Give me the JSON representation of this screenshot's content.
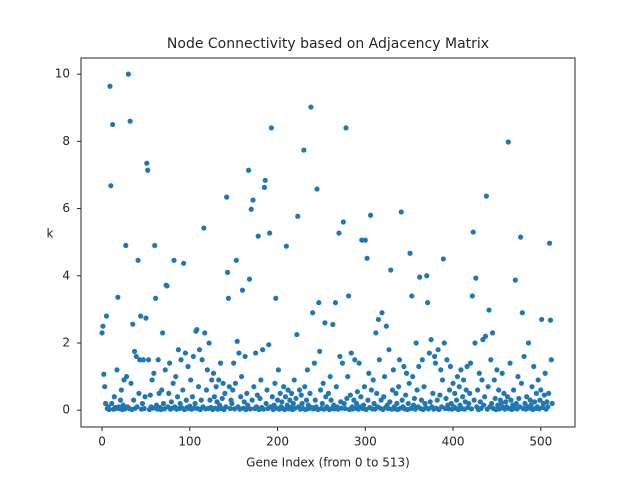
{
  "chart_data": {
    "type": "scatter",
    "title": "Node Connectivity based on Adjacency Matrix",
    "x_label": "Gene Index (from 0 to 513)",
    "y_label": "k",
    "color": "#1f77b4",
    "x": [
      0,
      1,
      2,
      3,
      4,
      5,
      6,
      7,
      8,
      9,
      10,
      11,
      12,
      13,
      14,
      15,
      16,
      17,
      18,
      19,
      20,
      21,
      22,
      23,
      24,
      25,
      26,
      27,
      28,
      29,
      30,
      31,
      32,
      33,
      34,
      35,
      36,
      37,
      38,
      39,
      40,
      41,
      42,
      43,
      44,
      45,
      46,
      47,
      48,
      49,
      50,
      51,
      52,
      53,
      54,
      55,
      56,
      57,
      58,
      59,
      60,
      61,
      62,
      63,
      64,
      65,
      66,
      67,
      68,
      69,
      70,
      71,
      72,
      73,
      74,
      75,
      76,
      77,
      78,
      79,
      80,
      81,
      82,
      83,
      84,
      85,
      86,
      87,
      88,
      89,
      90,
      91,
      92,
      93,
      94,
      95,
      96,
      97,
      98,
      99,
      100,
      101,
      102,
      103,
      104,
      105,
      106,
      107,
      108,
      109,
      110,
      111,
      112,
      113,
      114,
      115,
      116,
      117,
      118,
      119,
      120,
      121,
      122,
      123,
      124,
      125,
      126,
      127,
      128,
      129,
      130,
      131,
      132,
      133,
      134,
      135,
      136,
      137,
      138,
      139,
      140,
      141,
      142,
      143,
      144,
      145,
      146,
      147,
      148,
      149,
      150,
      151,
      152,
      153,
      154,
      155,
      156,
      157,
      158,
      159,
      160,
      161,
      162,
      163,
      164,
      165,
      166,
      167,
      168,
      169,
      170,
      171,
      172,
      173,
      174,
      175,
      176,
      177,
      178,
      179,
      180,
      181,
      182,
      183,
      184,
      185,
      186,
      187,
      188,
      189,
      190,
      191,
      192,
      193,
      194,
      195,
      196,
      197,
      198,
      199,
      200,
      201,
      202,
      203,
      204,
      205,
      206,
      207,
      208,
      209,
      210,
      211,
      212,
      213,
      214,
      215,
      216,
      217,
      218,
      219,
      220,
      221,
      222,
      223,
      224,
      225,
      226,
      227,
      228,
      229,
      230,
      231,
      232,
      233,
      234,
      235,
      236,
      237,
      238,
      239,
      240,
      241,
      242,
      243,
      244,
      245,
      246,
      247,
      248,
      249,
      250,
      251,
      252,
      253,
      254,
      255,
      256,
      257,
      258,
      259,
      260,
      261,
      262,
      263,
      264,
      265,
      266,
      267,
      268,
      269,
      270,
      271,
      272,
      273,
      274,
      275,
      276,
      277,
      278,
      279,
      280,
      281,
      282,
      283,
      284,
      285,
      286,
      287,
      288,
      289,
      290,
      291,
      292,
      293,
      294,
      295,
      296,
      297,
      298,
      299,
      300,
      301,
      302,
      303,
      304,
      305,
      306,
      307,
      308,
      309,
      310,
      311,
      312,
      313,
      314,
      315,
      316,
      317,
      318,
      319,
      320,
      321,
      322,
      323,
      324,
      325,
      326,
      327,
      328,
      329,
      330,
      331,
      332,
      333,
      334,
      335,
      336,
      337,
      338,
      339,
      340,
      341,
      342,
      343,
      344,
      345,
      346,
      347,
      348,
      349,
      350,
      351,
      352,
      353,
      354,
      355,
      356,
      357,
      358,
      359,
      360,
      361,
      362,
      363,
      364,
      365,
      366,
      367,
      368,
      369,
      370,
      371,
      372,
      373,
      374,
      375,
      376,
      377,
      378,
      379,
      380,
      381,
      382,
      383,
      384,
      385,
      386,
      387,
      388,
      389,
      390,
      391,
      392,
      393,
      394,
      395,
      396,
      397,
      398,
      399,
      400,
      401,
      402,
      403,
      404,
      405,
      406,
      407,
      408,
      409,
      410,
      411,
      412,
      413,
      414,
      415,
      416,
      417,
      418,
      419,
      420,
      421,
      422,
      423,
      424,
      425,
      426,
      427,
      428,
      429,
      430,
      431,
      432,
      433,
      434,
      435,
      436,
      437,
      438,
      439,
      440,
      441,
      442,
      443,
      444,
      445,
      446,
      447,
      448,
      449,
      450,
      451,
      452,
      453,
      454,
      455,
      456,
      457,
      458,
      459,
      460,
      461,
      462,
      463,
      464,
      465,
      466,
      467,
      468,
      469,
      470,
      471,
      472,
      473,
      474,
      475,
      476,
      477,
      478,
      479,
      480,
      481,
      482,
      483,
      484,
      485,
      486,
      487,
      488,
      489,
      490,
      491,
      492,
      493,
      494,
      495,
      496,
      497,
      498,
      499,
      500,
      501,
      502,
      503,
      504,
      505,
      506,
      507,
      508,
      509,
      510,
      511,
      512,
      513
    ],
    "values": [
      2.3,
      2.5,
      1.07,
      0.7,
      0.2,
      2.8,
      0.05,
      0.1,
      0.02,
      9.64,
      6.68,
      0.2,
      8.5,
      0.03,
      0.4,
      0.08,
      0.05,
      1.2,
      3.36,
      0.1,
      0.05,
      0.3,
      0.6,
      0.02,
      0.15,
      0.9,
      0.04,
      4.9,
      1.0,
      0.1,
      10.0,
      0.05,
      8.6,
      0.8,
      0.02,
      2.56,
      0.3,
      1.75,
      0.06,
      1.6,
      0.1,
      4.46,
      0.5,
      1.5,
      2.8,
      0.03,
      0.2,
      1.5,
      0.05,
      0.4,
      2.74,
      7.35,
      7.14,
      1.5,
      0.02,
      0.45,
      0.1,
      0.9,
      0.06,
      1.1,
      4.9,
      3.33,
      0.15,
      0.03,
      1.5,
      0.5,
      0.08,
      0.02,
      0.6,
      2.3,
      0.2,
      0.04,
      1.2,
      3.72,
      3.7,
      0.1,
      0.5,
      1.4,
      0.03,
      0.25,
      0.06,
      0.8,
      4.46,
      0.1,
      1.0,
      0.03,
      0.4,
      1.8,
      0.05,
      0.2,
      1.5,
      0.07,
      0.6,
      4.37,
      0.02,
      1.7,
      0.3,
      0.08,
      1.3,
      0.05,
      0.12,
      0.9,
      0.03,
      0.4,
      1.6,
      0.06,
      0.2,
      2.35,
      2.4,
      0.05,
      0.7,
      1.8,
      0.02,
      0.3,
      1.5,
      0.1,
      5.42,
      2.3,
      0.04,
      0.6,
      1.2,
      0.05,
      2.0,
      0.3,
      0.08,
      0.9,
      0.02,
      1.1,
      0.4,
      0.06,
      0.7,
      0.25,
      0.03,
      0.9,
      0.15,
      1.4,
      0.05,
      0.35,
      0.8,
      0.02,
      0.5,
      0.1,
      6.34,
      4.1,
      3.33,
      0.7,
      0.05,
      0.3,
      0.2,
      0.6,
      1.4,
      0.04,
      0.8,
      4.46,
      2.05,
      0.1,
      1.7,
      0.03,
      0.4,
      1.0,
      3.57,
      0.06,
      0.25,
      1.6,
      0.02,
      0.5,
      0.15,
      7.14,
      3.9,
      0.04,
      5.98,
      0.3,
      6.25,
      0.7,
      0.05,
      1.7,
      0.1,
      0.45,
      5.18,
      0.02,
      0.35,
      0.9,
      0.08,
      1.8,
      0.03,
      6.63,
      6.84,
      0.2,
      0.6,
      0.05,
      1.95,
      5.27,
      0.1,
      8.4,
      0.4,
      0.02,
      0.15,
      0.8,
      3.33,
      0.06,
      0.3,
      1.2,
      0.03,
      0.5,
      0.1,
      0.25,
      0.05,
      0.7,
      0.02,
      0.4,
      4.88,
      0.15,
      0.6,
      0.04,
      0.3,
      0.08,
      0.5,
      0.02,
      0.2,
      0.9,
      0.06,
      0.35,
      2.25,
      5.77,
      0.1,
      0.6,
      0.03,
      0.45,
      0.2,
      0.05,
      7.74,
      0.7,
      0.02,
      0.3,
      1.2,
      0.15,
      0.05,
      0.5,
      9.02,
      0.08,
      2.9,
      0.04,
      1.4,
      0.3,
      0.1,
      6.58,
      0.02,
      3.2,
      1.75,
      0.6,
      0.05,
      0.2,
      0.8,
      0.03,
      2.6,
      0.4,
      0.1,
      0.06,
      0.5,
      0.02,
      1.0,
      0.3,
      0.05,
      2.55,
      0.15,
      0.04,
      3.2,
      0.7,
      0.1,
      0.03,
      5.27,
      1.6,
      0.25,
      0.06,
      1.4,
      5.6,
      0.2,
      0.05,
      8.4,
      0.35,
      1.0,
      3.4,
      0.02,
      0.45,
      1.7,
      0.1,
      0.04,
      0.3,
      1.5,
      0.06,
      0.2,
      0.55,
      0.03,
      1.4,
      0.1,
      0.4,
      5.06,
      0.05,
      0.15,
      0.7,
      5.06,
      0.02,
      4.52,
      0.3,
      1.1,
      0.08,
      5.8,
      0.6,
      0.04,
      0.9,
      0.2,
      0.03,
      2.3,
      0.5,
      0.1,
      2.7,
      1.5,
      0.06,
      0.3,
      2.9,
      0.02,
      0.4,
      1.0,
      0.08,
      2.5,
      0.15,
      0.05,
      1.8,
      0.25,
      4.17,
      0.03,
      0.6,
      1.2,
      0.1,
      0.04,
      0.5,
      0.2,
      0.02,
      0.7,
      1.5,
      0.06,
      5.9,
      0.3,
      0.1,
      1.3,
      0.04,
      0.45,
      1.1,
      0.02,
      0.2,
      0.8,
      4.67,
      0.05,
      3.4,
      1.0,
      0.15,
      0.35,
      0.03,
      2.0,
      0.6,
      0.1,
      1.3,
      3.96,
      0.05,
      0.3,
      1.5,
      0.02,
      0.7,
      0.2,
      0.08,
      4.0,
      3.2,
      0.04,
      1.7,
      0.25,
      2.1,
      0.1,
      0.5,
      0.03,
      1.6,
      1.4,
      0.06,
      0.3,
      1.8,
      0.02,
      0.45,
      1.2,
      0.1,
      0.9,
      4.5,
      2.0,
      0.05,
      0.35,
      1.5,
      0.15,
      0.04,
      0.6,
      1.3,
      0.2,
      0.03,
      0.8,
      0.1,
      0.5,
      0.06,
      0.3,
      1.0,
      0.02,
      0.7,
      0.15,
      1.2,
      0.05,
      0.4,
      0.9,
      0.03,
      0.25,
      0.6,
      1.3,
      0.08,
      0.2,
      0.5,
      1.4,
      0.04,
      3.4,
      5.3,
      0.3,
      2.0,
      3.93,
      0.1,
      0.6,
      0.02,
      1.1,
      0.25,
      0.05,
      0.9,
      2.1,
      0.15,
      0.4,
      2.2,
      6.37,
      0.03,
      0.7,
      2.98,
      0.1,
      1.5,
      0.2,
      2.3,
      0.05,
      0.9,
      0.35,
      0.02,
      1.2,
      0.15,
      0.6,
      0.04,
      0.3,
      0.2,
      1.1,
      0.08,
      0.5,
      0.03,
      0.25,
      0.1,
      0.4,
      7.98,
      0.05,
      1.4,
      0.3,
      0.02,
      0.15,
      0.6,
      0.06,
      3.87,
      0.2,
      0.04,
      1.0,
      0.35,
      0.1,
      5.15,
      0.8,
      2.9,
      0.05,
      1.6,
      0.2,
      0.03,
      0.4,
      0.1,
      2.0,
      0.06,
      0.3,
      0.15,
      0.7,
      0.02,
      1.3,
      0.25,
      0.05,
      0.5,
      0.1,
      0.9,
      0.04,
      0.3,
      0.6,
      2.7,
      0.08,
      0.2,
      0.45,
      1.1,
      0.03,
      0.25,
      0.1,
      0.5,
      4.97,
      2.68,
      1.5,
      0.2
    ],
    "xlim": [
      -24,
      539
    ],
    "ylim": [
      -0.5,
      10.48
    ],
    "xticks": [
      0,
      100,
      200,
      300,
      400,
      500
    ],
    "yticks": [
      0,
      2,
      4,
      6,
      8,
      10
    ],
    "grid": false
  }
}
